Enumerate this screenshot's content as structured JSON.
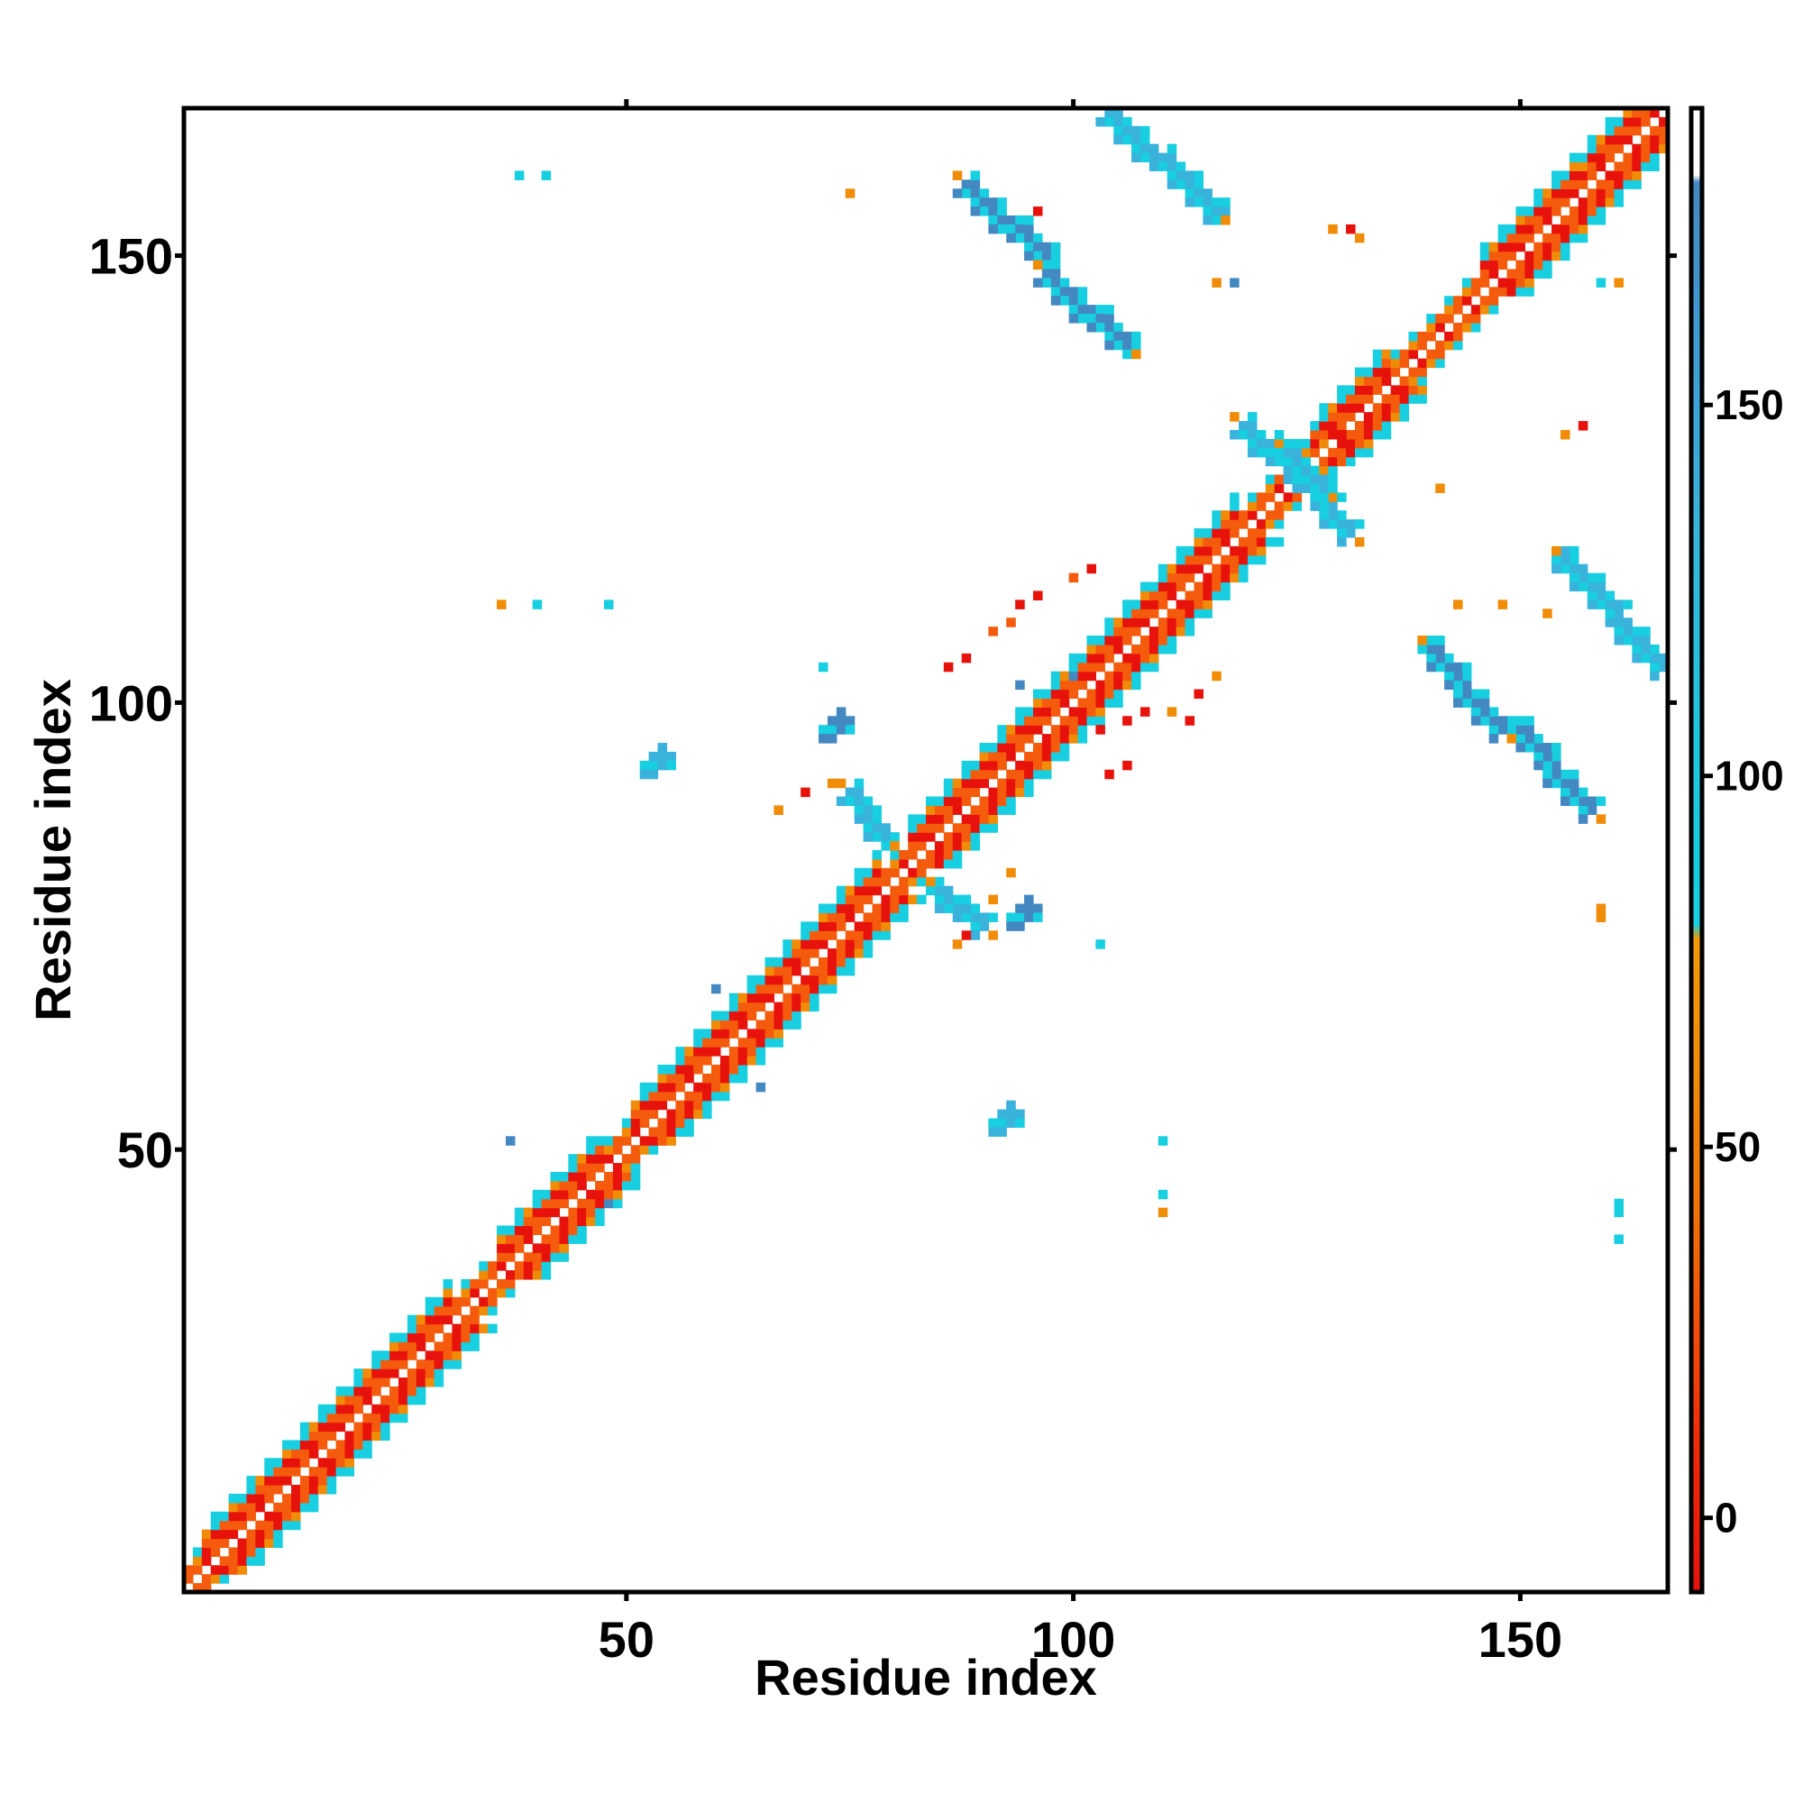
{
  "chart_data": {
    "type": "heatmap",
    "title": "",
    "xlabel": "Residue index",
    "ylabel": "Residue index",
    "xlim": [
      1,
      166
    ],
    "ylim": [
      1,
      166
    ],
    "x_ticks": [
      50,
      100,
      150
    ],
    "x_tick_labels": [
      "50",
      "100",
      "150"
    ],
    "y_ticks": [
      50,
      100,
      150
    ],
    "y_tick_labels": [
      "50",
      "100",
      "150"
    ],
    "grid": false,
    "legend": "colorbar-right",
    "colorbar": {
      "range": [
        -10,
        190
      ],
      "ticks": [
        0,
        50,
        100,
        150
      ],
      "tick_labels": [
        "0",
        "50",
        "100",
        "150"
      ],
      "bands": [
        {
          "from": -10,
          "to": 30,
          "color": "#e8120c"
        },
        {
          "from": 30,
          "to": 80,
          "color": "#f07a06"
        },
        {
          "from": 80,
          "to": 180,
          "color": "#3aa0cf"
        },
        {
          "from": 180,
          "to": 190,
          "color": "#ffffff"
        }
      ]
    },
    "palette": {
      "red": "#e8120c",
      "darkorange": "#f45b0c",
      "orange": "#f08c08",
      "cyan": "#17cfe0",
      "skyblue": "#39b2dc",
      "steelblue": "#4488c2"
    },
    "diagonal": {
      "from": 1,
      "to": 166
    },
    "helix_segments": [
      [
        3,
        9
      ],
      [
        9,
        15
      ],
      [
        15,
        22
      ],
      [
        22,
        30
      ],
      [
        36,
        47
      ],
      [
        51,
        56
      ],
      [
        56,
        65
      ],
      [
        66,
        78
      ],
      [
        82,
        98
      ],
      [
        98,
        108
      ],
      [
        108,
        118
      ],
      [
        127,
        135
      ],
      [
        146,
        158
      ],
      [
        158,
        166
      ]
    ],
    "sheet_pairs": [
      {
        "i": [
          75,
          79
        ],
        "j": [
          90,
          85
        ],
        "type": "anti",
        "color": "skyblue"
      },
      {
        "i": [
          88,
          97
        ],
        "j": [
          158,
          150
        ],
        "type": "anti",
        "color": "steelblue"
      },
      {
        "i": [
          97,
          106
        ],
        "j": [
          148,
          140
        ],
        "type": "anti",
        "color": "steelblue"
      },
      {
        "i": [
          104,
          116
        ],
        "j": [
          166,
          155
        ],
        "type": "anti",
        "color": "skyblue"
      },
      {
        "i": [
          119,
          128
        ],
        "j": [
          131,
          124
        ],
        "type": "anti",
        "color": "skyblue"
      }
    ],
    "patches": [
      {
        "x": 73,
        "y": 97,
        "color": "steelblue"
      },
      {
        "x": 94,
        "y": 76,
        "color": "steelblue"
      },
      {
        "x": 53,
        "y": 93,
        "color": "skyblue"
      },
      {
        "x": 92,
        "y": 53,
        "color": "skyblue"
      }
    ],
    "scattered_cells": [
      [
        38,
        159,
        "cyan"
      ],
      [
        41,
        159,
        "cyan"
      ],
      [
        75,
        157,
        "orange"
      ],
      [
        96,
        155,
        "red"
      ],
      [
        131,
        153,
        "red"
      ],
      [
        132,
        152,
        "orange"
      ],
      [
        129,
        153,
        "orange"
      ],
      [
        116,
        147,
        "orange"
      ],
      [
        159,
        147,
        "cyan"
      ],
      [
        161,
        147,
        "orange"
      ],
      [
        157,
        160,
        "orange"
      ],
      [
        118,
        147,
        "steelblue"
      ],
      [
        128,
        129,
        "orange"
      ],
      [
        130,
        130,
        "red"
      ],
      [
        155,
        130,
        "orange"
      ],
      [
        157,
        131,
        "red"
      ],
      [
        100,
        114,
        "darkorange"
      ],
      [
        102,
        115,
        "red"
      ],
      [
        96,
        112,
        "red"
      ],
      [
        94,
        111,
        "red"
      ],
      [
        93,
        109,
        "darkorange"
      ],
      [
        91,
        108,
        "darkorange"
      ],
      [
        88,
        105,
        "red"
      ],
      [
        86,
        104,
        "red"
      ],
      [
        94,
        102,
        "steelblue"
      ],
      [
        100,
        103,
        "steelblue"
      ],
      [
        103,
        97,
        "red"
      ],
      [
        106,
        98,
        "red"
      ],
      [
        108,
        99,
        "red"
      ],
      [
        113,
        98,
        "red"
      ],
      [
        111,
        99,
        "orange"
      ],
      [
        114,
        101,
        "red"
      ],
      [
        116,
        103,
        "orange"
      ],
      [
        106,
        93,
        "red"
      ],
      [
        104,
        92,
        "red"
      ],
      [
        73,
        91,
        "orange"
      ],
      [
        70,
        90,
        "red"
      ],
      [
        67,
        88,
        "orange"
      ],
      [
        93,
        81,
        "orange"
      ],
      [
        91,
        78,
        "orange"
      ],
      [
        88,
        74,
        "red"
      ],
      [
        87,
        73,
        "orange"
      ],
      [
        103,
        73,
        "cyan"
      ],
      [
        60,
        68,
        "steelblue"
      ],
      [
        65,
        57,
        "steelblue"
      ],
      [
        37,
        51,
        "steelblue"
      ],
      [
        48,
        44,
        "steelblue"
      ],
      [
        110,
        51,
        "cyan"
      ],
      [
        110,
        45,
        "cyan"
      ],
      [
        110,
        43,
        "orange"
      ],
      [
        161,
        44,
        "cyan"
      ],
      [
        161,
        43,
        "cyan"
      ],
      [
        161,
        40,
        "cyan"
      ],
      [
        159,
        76,
        "orange"
      ],
      [
        159,
        77,
        "orange"
      ],
      [
        36,
        111,
        "orange"
      ],
      [
        40,
        111,
        "cyan"
      ],
      [
        48,
        111,
        "cyan"
      ],
      [
        72,
        104,
        "cyan"
      ],
      [
        141,
        124,
        "orange"
      ],
      [
        148,
        111,
        "orange"
      ],
      [
        153,
        110,
        "orange"
      ],
      [
        143,
        111,
        "orange"
      ]
    ]
  }
}
